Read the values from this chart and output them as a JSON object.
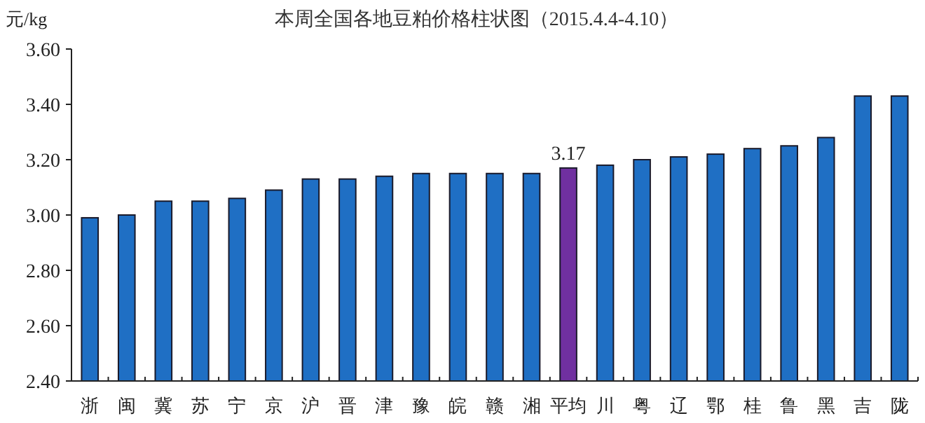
{
  "chart_data": {
    "type": "bar",
    "title": "本周全国各地豆粕价格柱状图（2015.4.4-4.10）",
    "ylabel": "元/kg",
    "categories": [
      "浙",
      "闽",
      "冀",
      "苏",
      "宁",
      "京",
      "沪",
      "晋",
      "津",
      "豫",
      "皖",
      "赣",
      "湘",
      "平均",
      "川",
      "粤",
      "辽",
      "鄂",
      "桂",
      "鲁",
      "黑",
      "吉",
      "陇"
    ],
    "values": [
      2.99,
      3.0,
      3.05,
      3.05,
      3.06,
      3.09,
      3.13,
      3.13,
      3.14,
      3.15,
      3.15,
      3.15,
      3.15,
      3.17,
      3.18,
      3.2,
      3.21,
      3.22,
      3.24,
      3.25,
      3.28,
      3.43,
      3.43
    ],
    "colors": [
      "#1f6fc4",
      "#1f6fc4",
      "#1f6fc4",
      "#1f6fc4",
      "#1f6fc4",
      "#1f6fc4",
      "#1f6fc4",
      "#1f6fc4",
      "#1f6fc4",
      "#1f6fc4",
      "#1f6fc4",
      "#1f6fc4",
      "#1f6fc4",
      "#7030a0",
      "#1f6fc4",
      "#1f6fc4",
      "#1f6fc4",
      "#1f6fc4",
      "#1f6fc4",
      "#1f6fc4",
      "#1f6fc4",
      "#1f6fc4",
      "#1f6fc4"
    ],
    "value_labels": [
      null,
      null,
      null,
      null,
      null,
      null,
      null,
      null,
      null,
      null,
      null,
      null,
      null,
      "3.17",
      null,
      null,
      null,
      null,
      null,
      null,
      null,
      null,
      null
    ],
    "ylim": [
      2.4,
      3.6
    ],
    "yticks": [
      {
        "value": 2.4,
        "label": "2.40"
      },
      {
        "value": 2.6,
        "label": "2.60"
      },
      {
        "value": 2.8,
        "label": "2.80"
      },
      {
        "value": 3.0,
        "label": "3.00"
      },
      {
        "value": 3.2,
        "label": "3.20"
      },
      {
        "value": 3.4,
        "label": "3.40"
      },
      {
        "value": 3.6,
        "label": "3.60"
      }
    ],
    "grid": false
  }
}
